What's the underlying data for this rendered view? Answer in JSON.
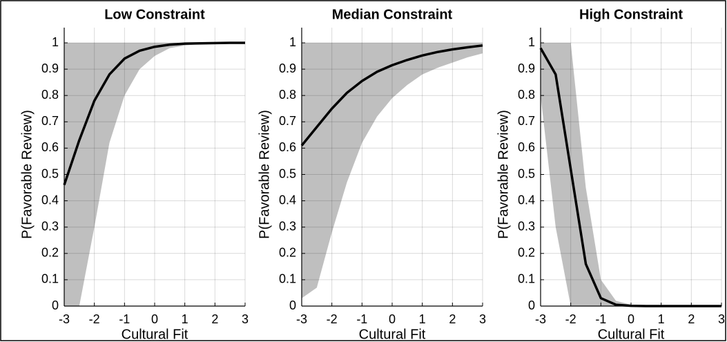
{
  "chart_data": [
    {
      "type": "line",
      "title": "Low Constraint",
      "xlabel": "Cultural Fit",
      "ylabel": "P(Favorable Review)",
      "x": [
        -3,
        -2.5,
        -2,
        -1.5,
        -1,
        -0.5,
        0,
        0.5,
        1,
        1.5,
        2,
        2.5,
        3
      ],
      "series": [
        {
          "color": "#000000",
          "values": [
            0.46,
            0.63,
            0.78,
            0.88,
            0.94,
            0.97,
            0.985,
            0.993,
            0.997,
            0.998,
            0.999,
            1,
            1
          ]
        }
      ],
      "band": {
        "color": "#bfbfbf",
        "lower": [
          0,
          0,
          0.3,
          0.62,
          0.8,
          0.9,
          0.95,
          0.98,
          0.99,
          0.995,
          0.998,
          0.999,
          1
        ],
        "upper": [
          1,
          1,
          1,
          1,
          1,
          1,
          1,
          1,
          1,
          1,
          1,
          1,
          1
        ]
      },
      "xlim": [
        -3,
        3
      ],
      "ylim": [
        0,
        1
      ],
      "xticks": [
        -3,
        -2,
        -1,
        0,
        1,
        2,
        3
      ],
      "yticks": [
        0,
        0.1,
        0.2,
        0.3,
        0.4,
        0.5,
        0.6,
        0.7,
        0.8,
        0.9,
        1
      ],
      "grid": true
    },
    {
      "type": "line",
      "title": "Median Constraint",
      "xlabel": "Cultural Fit",
      "ylabel": "P(Favorable Review)",
      "x": [
        -3,
        -2.5,
        -2,
        -1.5,
        -1,
        -0.5,
        0,
        0.5,
        1,
        1.5,
        2,
        2.5,
        3
      ],
      "series": [
        {
          "color": "#000000",
          "values": [
            0.61,
            0.68,
            0.75,
            0.81,
            0.855,
            0.89,
            0.915,
            0.935,
            0.952,
            0.965,
            0.975,
            0.983,
            0.99
          ]
        }
      ],
      "band": {
        "color": "#bfbfbf",
        "lower": [
          0.03,
          0.07,
          0.28,
          0.47,
          0.62,
          0.72,
          0.79,
          0.84,
          0.88,
          0.905,
          0.925,
          0.945,
          0.96
        ],
        "upper": [
          1,
          1,
          1,
          1,
          1,
          1,
          1,
          1,
          1,
          1,
          1,
          1,
          1
        ]
      },
      "xlim": [
        -3,
        3
      ],
      "ylim": [
        0,
        1
      ],
      "xticks": [
        -3,
        -2,
        -1,
        0,
        1,
        2,
        3
      ],
      "yticks": [
        0,
        0.1,
        0.2,
        0.3,
        0.4,
        0.5,
        0.6,
        0.7,
        0.8,
        0.9,
        1
      ],
      "grid": true
    },
    {
      "type": "line",
      "title": "High Constraint",
      "xlabel": "Cultural Fit",
      "ylabel": "P(Favorable Review)",
      "x": [
        -3,
        -2.5,
        -2,
        -1.5,
        -1,
        -0.5,
        0,
        0.5,
        1,
        1.5,
        2,
        2.5,
        3
      ],
      "series": [
        {
          "color": "#000000",
          "values": [
            0.98,
            0.88,
            0.52,
            0.16,
            0.03,
            0.005,
            0.001,
            0,
            0,
            0,
            0,
            0,
            0
          ]
        }
      ],
      "band": {
        "color": "#bfbfbf",
        "lower": [
          0.8,
          0.3,
          0,
          0,
          0,
          0,
          0,
          0,
          0,
          0,
          0,
          0,
          0
        ],
        "upper": [
          1,
          1,
          1,
          0.45,
          0.1,
          0.02,
          0.005,
          0.001,
          0,
          0,
          0,
          0,
          0
        ]
      },
      "xlim": [
        -3,
        3
      ],
      "ylim": [
        0,
        1
      ],
      "xticks": [
        -3,
        -2,
        -1,
        0,
        1,
        2,
        3
      ],
      "yticks": [
        0,
        0.1,
        0.2,
        0.3,
        0.4,
        0.5,
        0.6,
        0.7,
        0.8,
        0.9,
        1
      ],
      "grid": true
    }
  ]
}
